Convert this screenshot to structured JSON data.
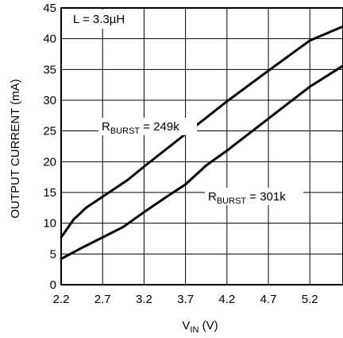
{
  "chart_data": {
    "type": "line",
    "xlabel": {
      "main": "V",
      "sub": "IN",
      "unit": " (V)"
    },
    "ylabel": "OUTPUT CURRENT (mA)",
    "xlim": [
      2.2,
      5.6
    ],
    "ylim": [
      0,
      45
    ],
    "x_ticks": [
      "2.2",
      "2.7",
      "3.2",
      "3.7",
      "4.2",
      "4.7",
      "5.2"
    ],
    "y_ticks": [
      "0",
      "5",
      "10",
      "15",
      "20",
      "25",
      "30",
      "35",
      "40",
      "45"
    ],
    "grid": true,
    "annotation": "L = 3.3µH",
    "series": [
      {
        "name": "R_BURST = 249k",
        "label": {
          "main": "R",
          "sub": "BURST",
          "rest": " = 249k"
        },
        "points": [
          [
            2.2,
            7.7
          ],
          [
            2.35,
            10.6
          ],
          [
            2.5,
            12.5
          ],
          [
            2.7,
            14.3
          ],
          [
            3.0,
            17.0
          ],
          [
            3.2,
            19.2
          ],
          [
            3.7,
            24.5
          ],
          [
            4.2,
            29.8
          ],
          [
            4.7,
            34.8
          ],
          [
            5.2,
            39.7
          ],
          [
            5.6,
            42.0
          ]
        ]
      },
      {
        "name": "R_BURST = 301k",
        "label": {
          "main": "R",
          "sub": "BURST",
          "rest": " = 301k"
        },
        "points": [
          [
            2.2,
            4.2
          ],
          [
            2.45,
            6.0
          ],
          [
            2.7,
            7.7
          ],
          [
            2.95,
            9.4
          ],
          [
            3.2,
            11.8
          ],
          [
            3.45,
            14.1
          ],
          [
            3.7,
            16.3
          ],
          [
            3.95,
            19.4
          ],
          [
            4.2,
            21.8
          ],
          [
            4.7,
            27.0
          ],
          [
            5.2,
            32.2
          ],
          [
            5.6,
            35.6
          ]
        ]
      }
    ]
  }
}
